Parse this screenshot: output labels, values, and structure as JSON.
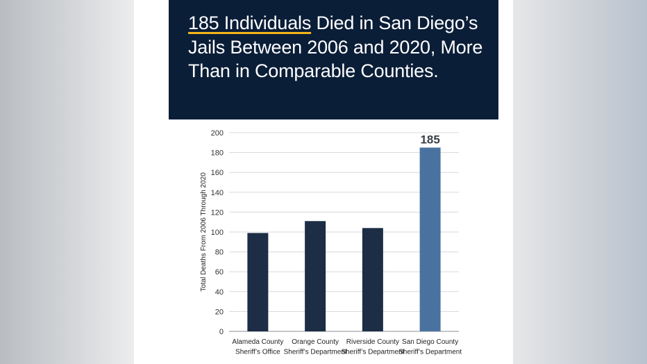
{
  "headline": {
    "highlight": "185 Individuals",
    "rest": " Died in San Diego’s Jails Between 2006 and 2020, More Than in Comparable Counties."
  },
  "colors": {
    "header_bg": "#0b1e38",
    "underline": "#f4b41a",
    "bar_default": "#1c2d45",
    "bar_highlight": "#4a72a1"
  },
  "chart_data": {
    "type": "bar",
    "categories": [
      [
        "Alameda County",
        "Sheriff’s Office"
      ],
      [
        "Orange County",
        "Sheriff’s Department"
      ],
      [
        "Riverside County",
        "Sheriff’s Department"
      ],
      [
        "San Diego County",
        "Sheriff’s Department"
      ]
    ],
    "values": [
      99,
      111,
      104,
      185
    ],
    "highlight_index": 3,
    "data_labels": [
      "",
      "",
      "",
      "185"
    ],
    "title": "",
    "xlabel": "",
    "ylabel": "Total Deaths From 2006 Through 2020",
    "ylim": [
      0,
      200
    ],
    "yticks": [
      0,
      20,
      40,
      60,
      80,
      100,
      120,
      140,
      160,
      180,
      200
    ],
    "grid": true,
    "legend": "none"
  }
}
